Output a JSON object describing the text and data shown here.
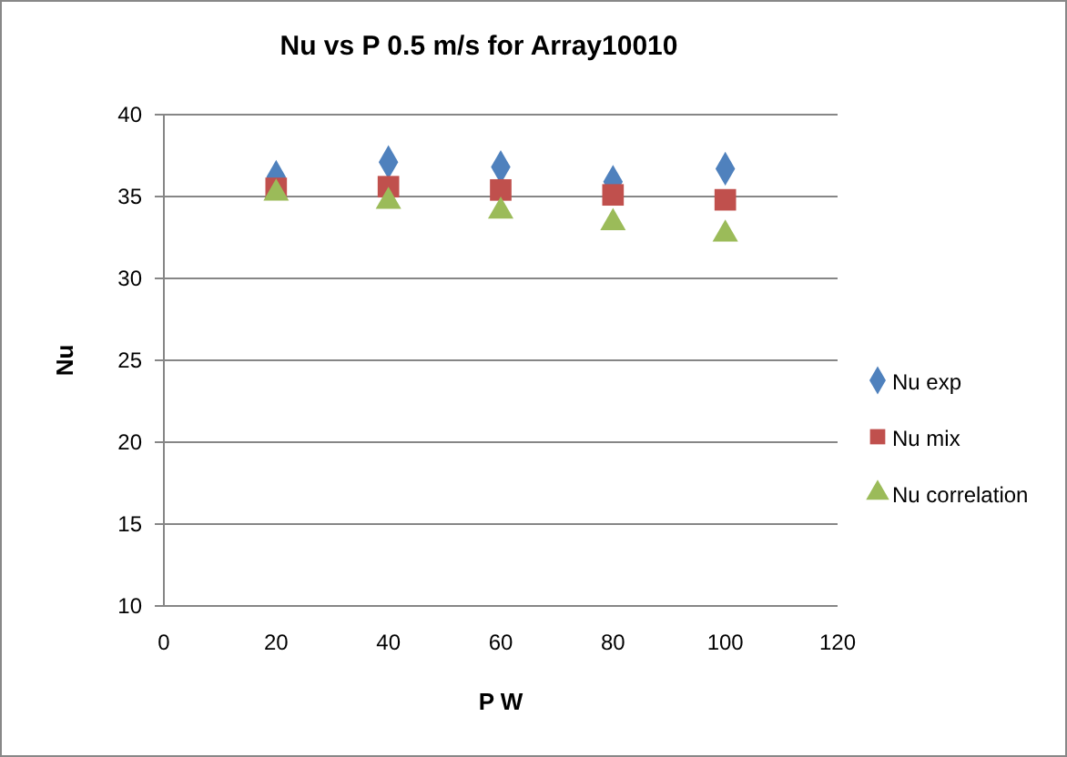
{
  "chart_data": {
    "type": "scatter",
    "title": "Nu vs P 0.5 m/s for Array10010",
    "xlabel": "P W",
    "ylabel": "Nu",
    "x": [
      20,
      40,
      60,
      80,
      100
    ],
    "xlim": [
      0,
      120
    ],
    "xticks": [
      0,
      20,
      40,
      60,
      80,
      100,
      120
    ],
    "ylim": [
      10,
      40
    ],
    "yticks": [
      10,
      15,
      20,
      25,
      30,
      35,
      40
    ],
    "grid": "y",
    "legend": "right",
    "series": [
      {
        "name": "Nu exp",
        "color": "#4f81bd",
        "marker": "diamond",
        "values": [
          36.2,
          37.1,
          36.8,
          35.9,
          36.7
        ]
      },
      {
        "name": "Nu mix",
        "color": "#c0504d",
        "marker": "square",
        "values": [
          35.5,
          35.6,
          35.4,
          35.1,
          34.8
        ]
      },
      {
        "name": "Nu correlation",
        "color": "#9bbb59",
        "marker": "triangle",
        "values": [
          35.2,
          34.7,
          34.1,
          33.4,
          32.7
        ]
      }
    ]
  }
}
